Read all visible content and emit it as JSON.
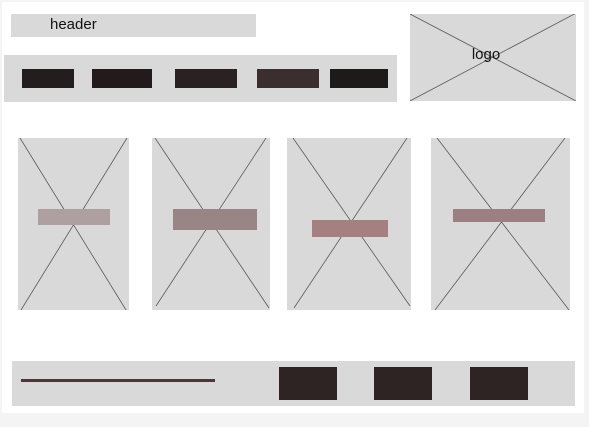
{
  "header": {
    "label": "header"
  },
  "logo": {
    "label": "logo"
  },
  "colors": {
    "placeholder_bg": "#d9d9d9",
    "placeholder_line": "#5a5a5a",
    "nav_buttons": [
      "#241d1e",
      "#221a1b",
      "#2a2122",
      "#3a2e2e",
      "#1e1a1a"
    ],
    "card_bars": [
      "#aea0a0",
      "#9a8586",
      "#a67f80",
      "#9b7f82"
    ],
    "footer_line": "#4a3838",
    "footer_buttons": [
      "#2e2424",
      "#2e2424",
      "#2e2424"
    ]
  }
}
